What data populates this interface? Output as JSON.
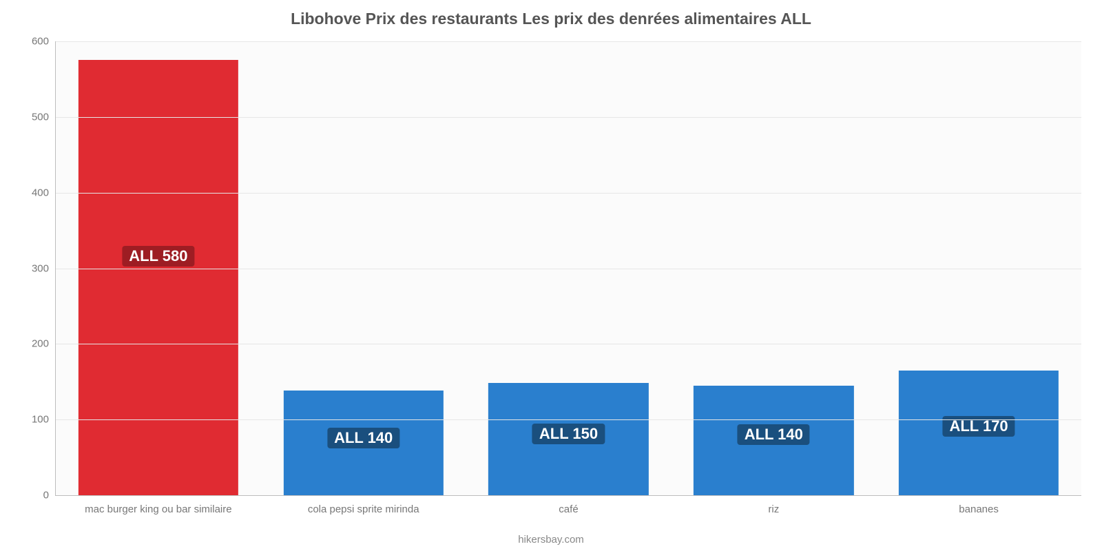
{
  "chart": {
    "type": "bar",
    "title": "Libohove Prix des restaurants Les prix des denrées alimentaires ALL",
    "title_fontsize": 23,
    "title_color": "#555555",
    "background_color": "#fbfbfb",
    "axis_color": "#bdbdbd",
    "grid_color": "#e6e6e6",
    "tick_color": "#777777",
    "tick_fontsize": 15,
    "ylim": [
      0,
      600
    ],
    "yticks": [
      0,
      100,
      200,
      300,
      400,
      500,
      600
    ],
    "bar_width_ratio": 0.78,
    "categories": [
      "mac burger king ou bar similaire",
      "cola pepsi sprite mirinda",
      "café",
      "riz",
      "bananes"
    ],
    "values": [
      575,
      138,
      148,
      145,
      165
    ],
    "value_labels": [
      "ALL 580",
      "ALL 140",
      "ALL 150",
      "ALL 140",
      "ALL 170"
    ],
    "bar_colors": [
      "#e02b32",
      "#2a7fce",
      "#2a7fce",
      "#2a7fce",
      "#2a7fce"
    ],
    "label_bg_colors": [
      "#9d1d23",
      "#1a4f7e",
      "#1a4f7e",
      "#1a4f7e",
      "#1a4f7e"
    ],
    "label_fontsize": 22
  },
  "footer": "hikersbay.com"
}
